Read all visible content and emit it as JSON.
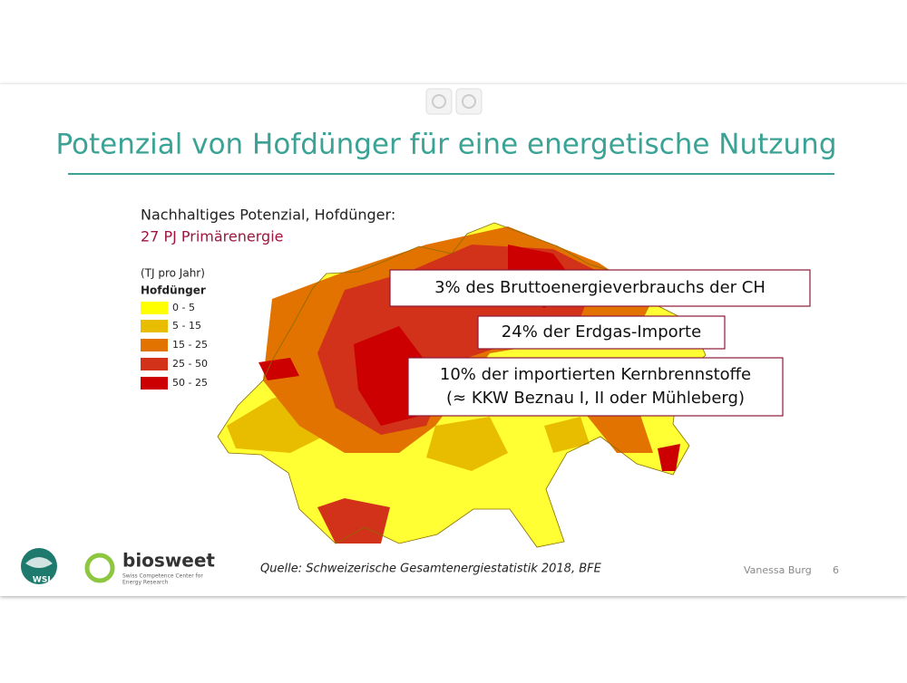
{
  "slide": {
    "title": "Potenzial von Hofdünger für eine energetische Nutzung",
    "subtitle": "Nachhaltiges Potenzial, Hofdünger:",
    "highlight": "27 PJ Primärenergie",
    "legend": {
      "unit": "(TJ pro Jahr)",
      "title": "Hofdünger",
      "items": [
        {
          "label": "0 - 5",
          "color": "#ffff00"
        },
        {
          "label": "5 - 15",
          "color": "#e8bd00"
        },
        {
          "label": "15 - 25",
          "color": "#e27300"
        },
        {
          "label": "25 - 50",
          "color": "#d3321a"
        },
        {
          "label": "50 - 25",
          "color": "#cc0000"
        }
      ]
    },
    "callouts": [
      {
        "lines": [
          "3% des Bruttoenergieverbrauchs der CH"
        ]
      },
      {
        "lines": [
          "24% der Erdgas-Importe"
        ]
      },
      {
        "lines": [
          "10% der importierten Kernbrennstoffe",
          "(≈ KKW Beznau I, II oder Mühleberg)"
        ]
      }
    ],
    "source": "Quelle: Schweizerische Gesamtenergiestatistik 2018, BFE",
    "author": "Vanessa Burg",
    "page_number": "6",
    "logos": {
      "wsl": "WSL",
      "biosweet": "biosweet",
      "biosweet_tagline": [
        "Swiss Competence Center for",
        "Energy Research"
      ]
    }
  }
}
